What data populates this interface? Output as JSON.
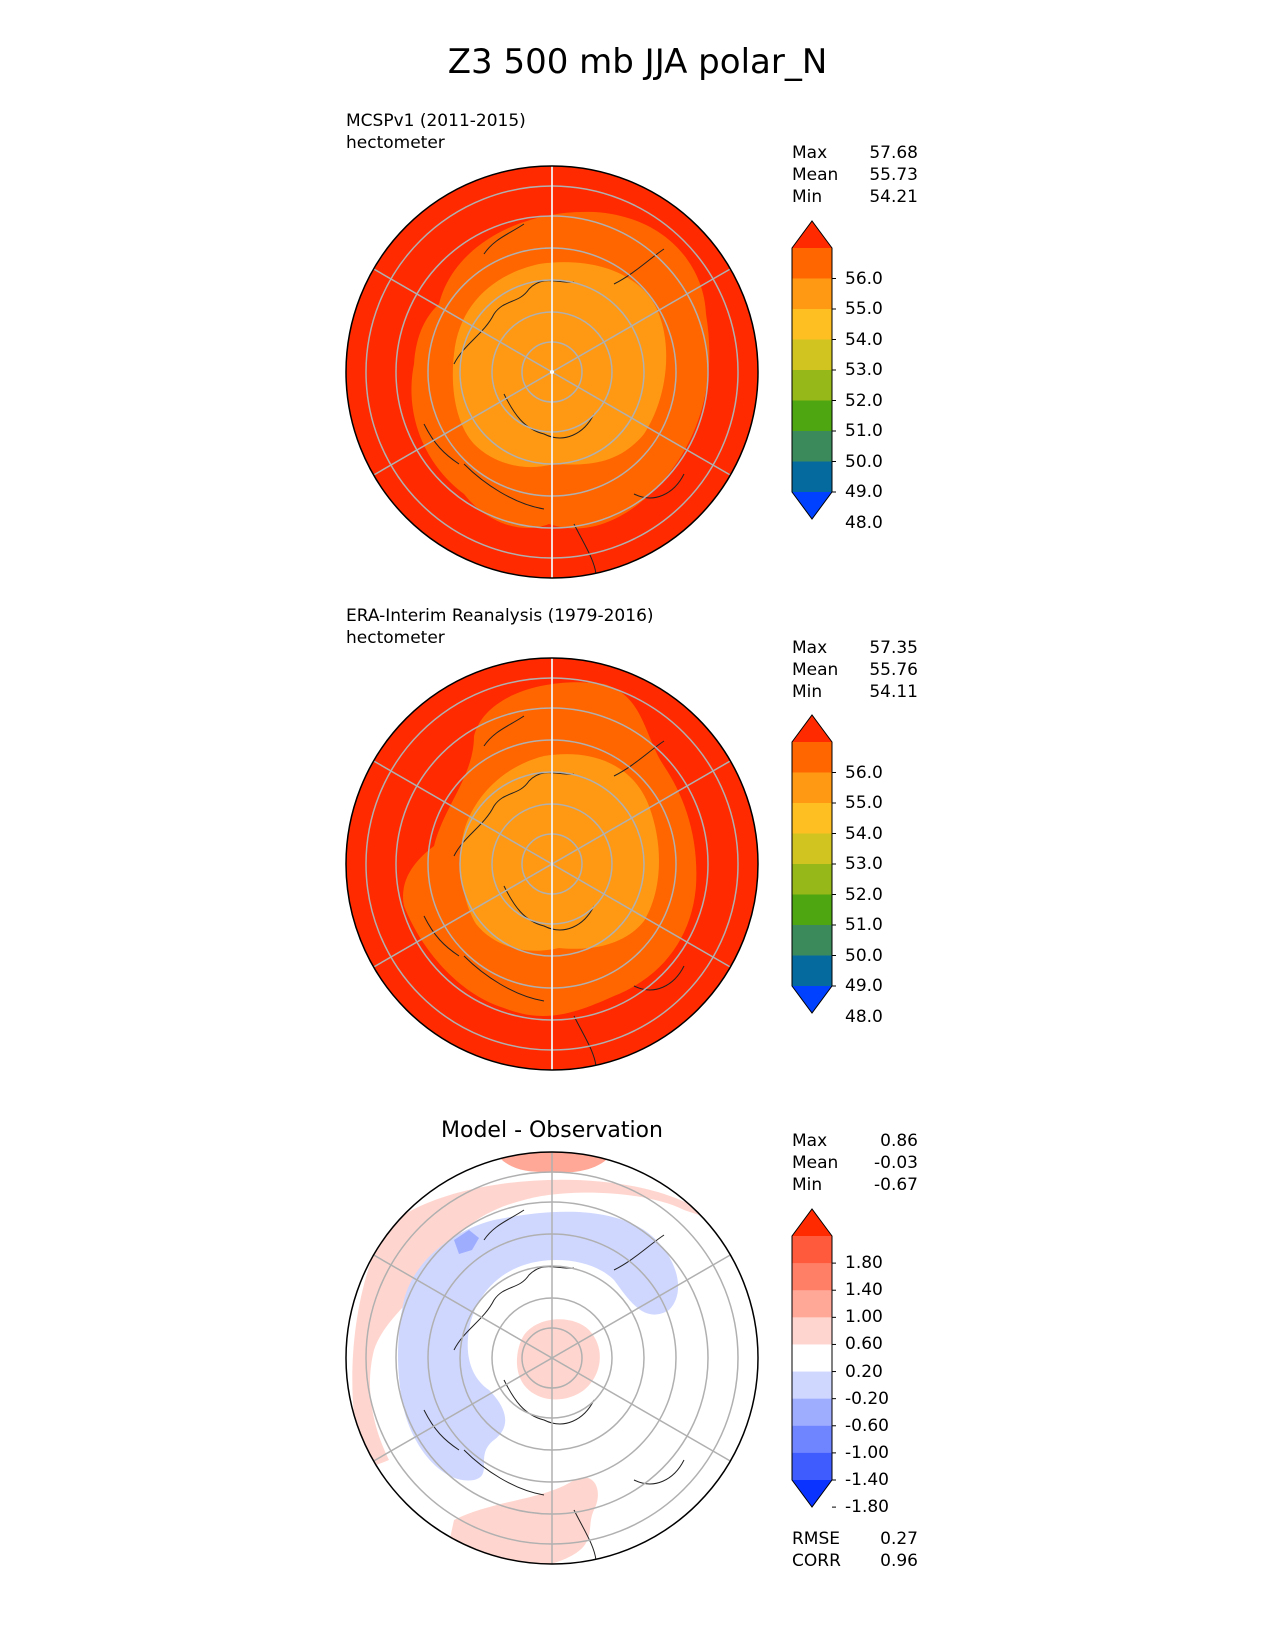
{
  "title": "Z3 500 mb JJA polar_N",
  "panels": [
    {
      "kind": "model",
      "label": "MCSPv1 (2011-2015)",
      "units": "hectometer",
      "stats": [
        {
          "name": "Max",
          "value": "57.68"
        },
        {
          "name": "Mean",
          "value": "55.73"
        },
        {
          "name": "Min",
          "value": "54.21"
        }
      ]
    },
    {
      "kind": "obs",
      "label": "ERA-Interim Reanalysis (1979-2016)",
      "units": "hectometer",
      "stats": [
        {
          "name": "Max",
          "value": "57.35"
        },
        {
          "name": "Mean",
          "value": "55.76"
        },
        {
          "name": "Min",
          "value": "54.11"
        }
      ]
    },
    {
      "kind": "diff",
      "label": "Model - Observation",
      "stats": [
        {
          "name": "Max",
          "value": "0.86"
        },
        {
          "name": "Mean",
          "value": "-0.03"
        },
        {
          "name": "Min",
          "value": "-0.67"
        }
      ],
      "extra_stats": [
        {
          "name": "RMSE",
          "value": "0.27"
        },
        {
          "name": "CORR",
          "value": "0.96"
        }
      ]
    }
  ],
  "colorbar_field": {
    "labels": [
      "56.0",
      "55.0",
      "54.0",
      "53.0",
      "52.0",
      "51.0",
      "50.0",
      "49.0",
      "48.0"
    ],
    "colors": [
      "#ff2a00",
      "#ff6600",
      "#ff9913",
      "#fdbf21",
      "#d2c420",
      "#96b818",
      "#4ea611",
      "#3a8a5c",
      "#056b9f",
      "#0041ff"
    ]
  },
  "colorbar_diff": {
    "labels": [
      "1.80",
      "1.40",
      "1.00",
      "0.60",
      "0.20",
      "-0.20",
      "-0.60",
      "-1.00",
      "-1.40",
      "-1.80"
    ],
    "colors": [
      "#ff2a00",
      "#ff5a3c",
      "#ff7f66",
      "#ffa898",
      "#ffd6cf",
      "#ffffff",
      "#cfd7ff",
      "#9fadff",
      "#6f84ff",
      "#3f5cff",
      "#0a33ff"
    ]
  },
  "chart_data": {
    "type": "heatmap",
    "projection": "north-polar-stereographic",
    "field": "Z3 geopotential height at 500 mb, JJA",
    "grid": "concentric latitude circles and 8 meridians",
    "legend_placement": "right"
  }
}
